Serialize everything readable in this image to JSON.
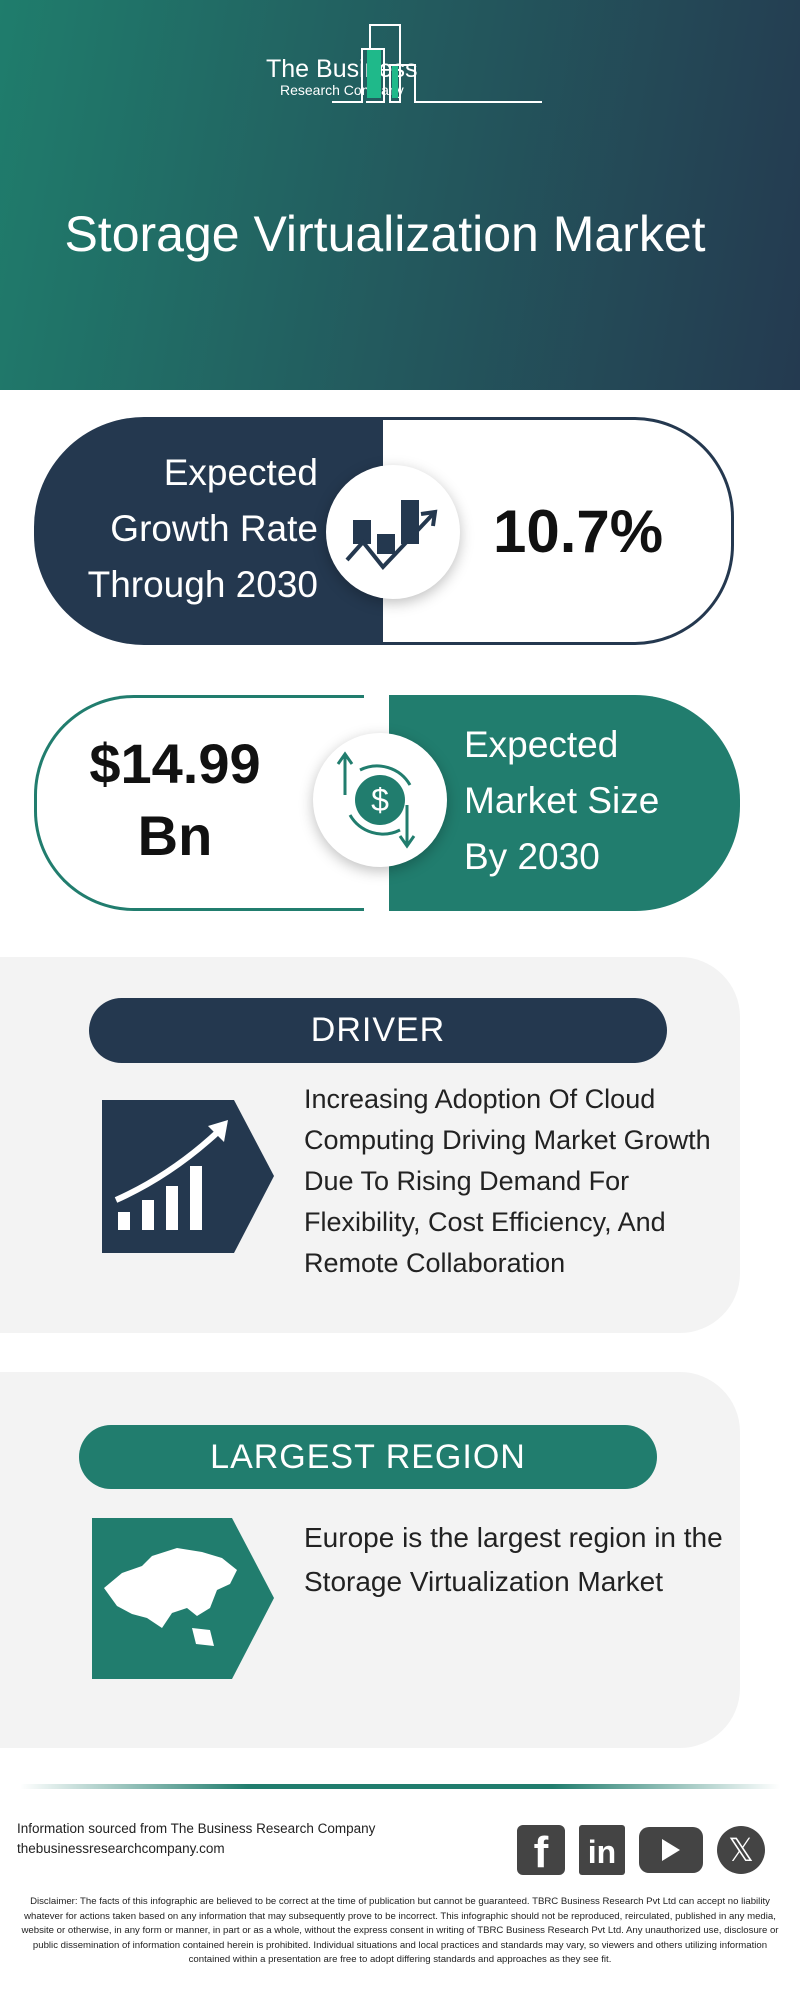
{
  "header": {
    "logo_line1": "The Business",
    "logo_line2": "Research Company",
    "title": "Storage Virtualization Market",
    "colors": {
      "teal": "#217d6e",
      "navy": "#24384f"
    }
  },
  "growth": {
    "label": "Expected Growth Rate Through 2030",
    "value": "10.7%",
    "icon": "growth-chart-icon"
  },
  "market_size": {
    "value_line1": "$14.99",
    "value_line2": "Bn",
    "label_line1": "Expected",
    "label_line2": "Market Size",
    "label_line3": "By 2030",
    "icon": "dollar-exchange-icon"
  },
  "driver": {
    "heading": "DRIVER",
    "text": "Increasing Adoption Of Cloud Computing Driving Market Growth Due To Rising Demand For Flexibility, Cost Efficiency, And Remote Collaboration",
    "icon": "rising-bar-chart-icon"
  },
  "region": {
    "heading": "LARGEST REGION",
    "text": "Europe is the largest region in the Storage Virtualization Market",
    "icon": "map-icon"
  },
  "footer": {
    "source": "Information sourced from The Business Research Company",
    "website": "thebusinessresearchcompany.com",
    "social": [
      "facebook",
      "linkedin",
      "youtube",
      "x"
    ]
  },
  "disclaimer": "Disclaimer: The facts of this infographic are believed to be correct at the time of publication but cannot be guaranteed. TBRC Business Research Pvt Ltd can accept no liability whatever for actions taken based on any information that may subsequently prove to be incorrect. This infographic should not be reproduced, reirculated, published in any media, website or otherwise, in any form or manner, in part or as a whole, without the express consent in writing of TBRC Business Research Pvt Ltd. Any unauthorized use, disclosure or public dissemination of information contained herein is prohibited. Individual situations and local practices and standards may vary, so viewers and others utilizing information contained within a presentation are free to adopt differing standards and approaches as they see fit."
}
